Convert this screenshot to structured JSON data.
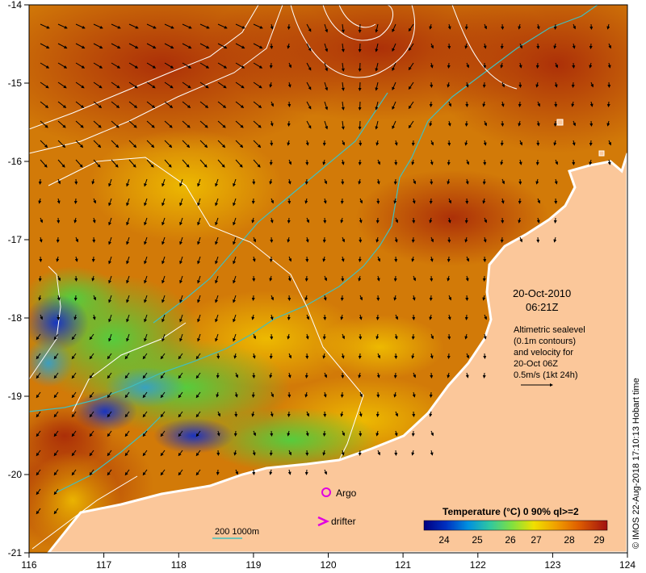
{
  "map": {
    "lon_ticks": [
      "116",
      "117",
      "118",
      "119",
      "120",
      "121",
      "122",
      "123",
      "124"
    ],
    "lat_ticks": [
      "-14",
      "-15",
      "-16",
      "-17",
      "-18",
      "-19",
      "-20",
      "-21"
    ],
    "lon_range": [
      116,
      124
    ],
    "lat_range": [
      -21,
      -14
    ]
  },
  "annotation": {
    "date": "20-Oct-2010",
    "time": "06:21Z",
    "desc_line1": "Altimetric sealevel",
    "desc_line2": "(0.1m contours)",
    "desc_line3": "and velocity for",
    "desc_line4": "20-Oct 06Z",
    "desc_line5": "0.5m/s (1kt 24h)"
  },
  "legend": {
    "argo": "Argo",
    "drifter": "drifter",
    "depth": "200  1000m",
    "argo_color": "#e000e0",
    "depth_color": "#40c0c0"
  },
  "colorbar": {
    "title": "Temperature (°C) 0 90% ql>=2",
    "ticks": [
      "24",
      "25",
      "26",
      "27",
      "28",
      "29"
    ]
  },
  "credit": "© IMOS 22-Aug-2018 17:10:13 Hobart time",
  "colors": {
    "land": "#fbc79a",
    "warm": "#b83010",
    "mid": "#d87800",
    "cool": "#f0c000",
    "cold": "#60d030",
    "coldest": "#0030c0"
  }
}
